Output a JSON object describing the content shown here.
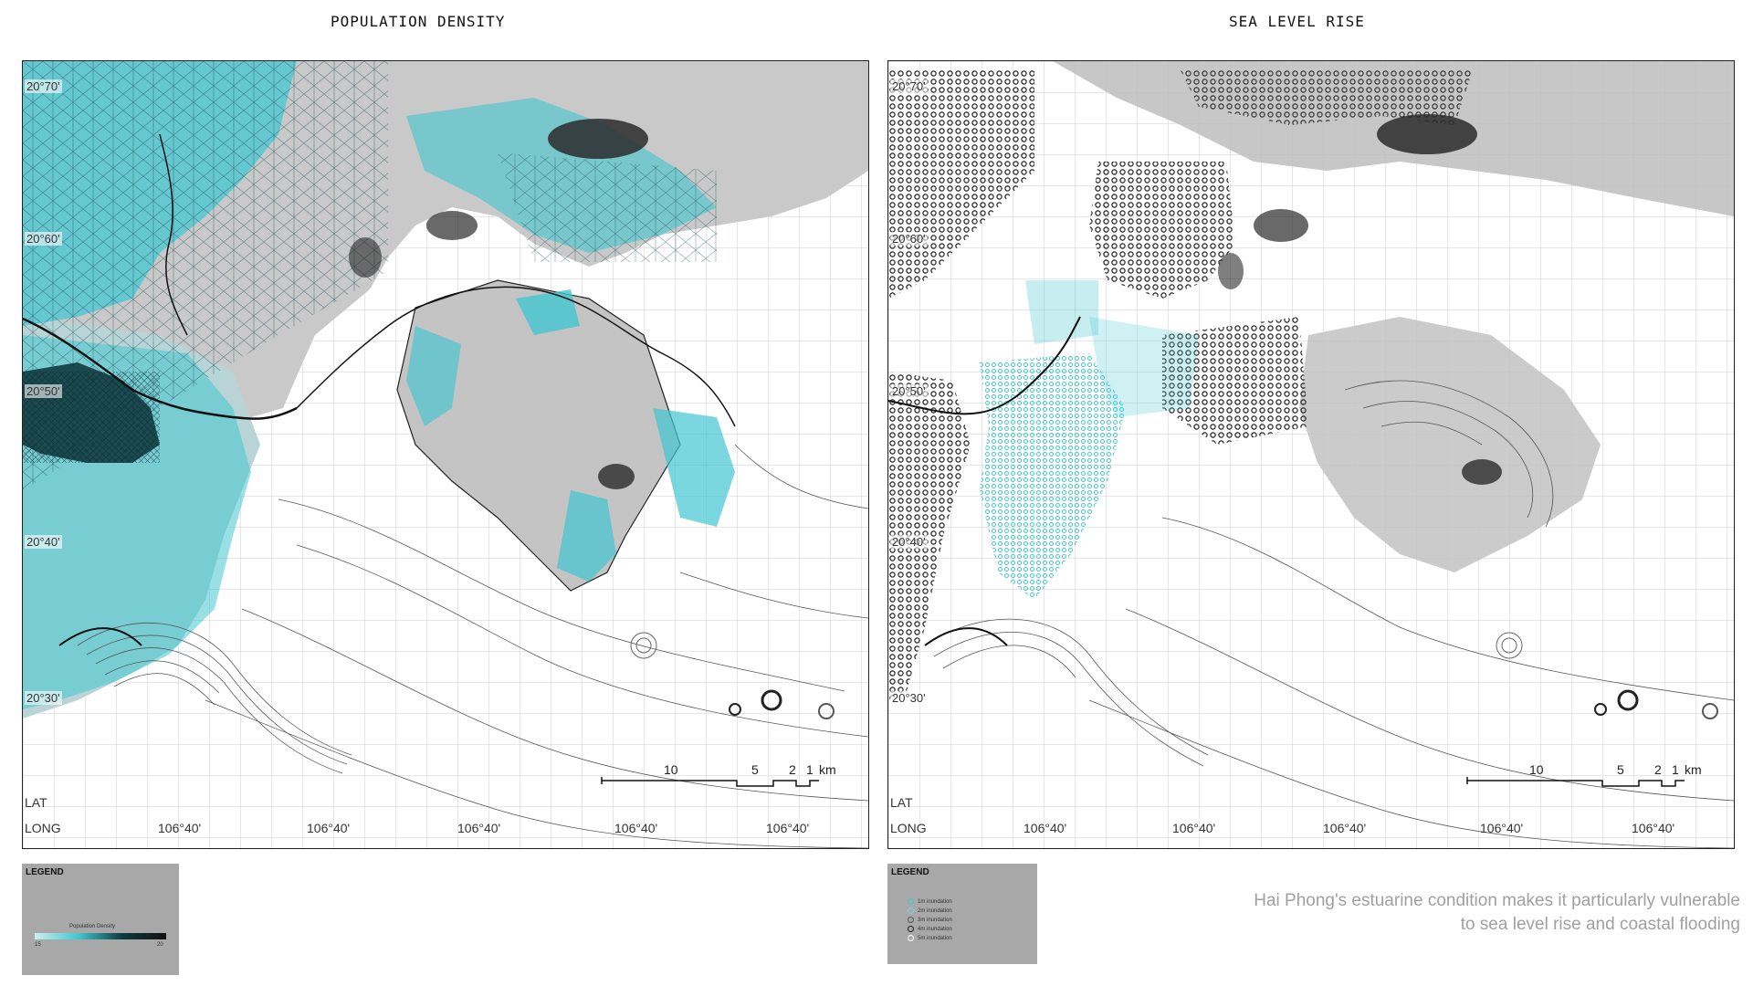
{
  "left_panel": {
    "title": "POPULATION DENSITY",
    "lat_labels": [
      "20°70'",
      "20°60'",
      "20°50'",
      "20°40'",
      "20°30'"
    ],
    "axis_lat": "LAT",
    "axis_long": "LONG",
    "long_ticks": [
      "106°40'",
      "106°40'",
      "106°40'",
      "106°40'",
      "106°40'"
    ],
    "scale": {
      "labels": [
        "10",
        "5",
        "2",
        "1",
        "km"
      ]
    },
    "legend": {
      "title": "LEGEND",
      "ramp_label": "Population Density",
      "ramp_min": "15",
      "ramp_max": "20",
      "ramp_colors": [
        "#cdeef1",
        "#43c6d1",
        "#0e3a3f",
        "#111111"
      ]
    }
  },
  "right_panel": {
    "title": "SEA LEVEL RISE",
    "lat_labels": [
      "20°70'",
      "20°60'",
      "20°50'",
      "20°40'",
      "20°30'"
    ],
    "axis_lat": "LAT",
    "axis_long": "LONG",
    "long_ticks": [
      "106°40'",
      "106°40'",
      "106°40'",
      "106°40'",
      "106°40'"
    ],
    "scale": {
      "labels": [
        "10",
        "5",
        "2",
        "1",
        "km"
      ]
    },
    "legend": {
      "title": "LEGEND",
      "items": [
        {
          "label": "1m inundation",
          "color": "#43c6d1"
        },
        {
          "label": "2m inundation",
          "color": "#7fd3da"
        },
        {
          "label": "3m inundation",
          "color": "#555555"
        },
        {
          "label": "4m inundation",
          "color": "#222222"
        },
        {
          "label": "5m inundation",
          "color": "#ffffff"
        }
      ]
    }
  },
  "caption": {
    "line1": "Hai Phong's estuarine condition makes it particularly vulnerable",
    "line2": "to sea level rise and coastal flooding"
  },
  "colors": {
    "accent_cyan": "#43c6d1",
    "land_gray": "#c9c9c9",
    "dark_relief": "#2a2a2a",
    "legend_bg": "#a8a8a8"
  }
}
